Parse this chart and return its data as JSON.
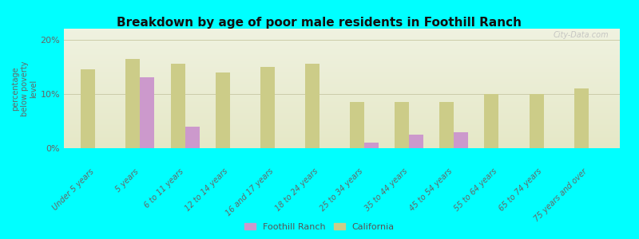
{
  "title": "Breakdown by age of poor male residents in Foothill Ranch",
  "categories": [
    "Under 5 years",
    "5 years",
    "6 to 11 years",
    "12 to 14 years",
    "16 and 17 years",
    "18 to 24 years",
    "25 to 34 years",
    "35 to 44 years",
    "45 to 54 years",
    "55 to 64 years",
    "65 to 74 years",
    "75 years and over"
  ],
  "foothill_ranch": [
    null,
    13.0,
    4.0,
    null,
    null,
    null,
    1.0,
    2.5,
    3.0,
    null,
    null,
    null
  ],
  "california": [
    14.5,
    16.5,
    15.5,
    14.0,
    15.0,
    15.5,
    8.5,
    8.5,
    8.5,
    10.0,
    10.0,
    11.0
  ],
  "ylabel": "percentage\nbelow poverty\nlevel",
  "ylim": [
    0,
    22
  ],
  "yticks": [
    0,
    10,
    20
  ],
  "ytick_labels": [
    "0%",
    "10%",
    "20%"
  ],
  "bar_color_foothill": "#cc99cc",
  "bar_color_california": "#cccc88",
  "background_color": "#00ffff",
  "bar_width": 0.32,
  "legend_foothill": "Foothill Ranch",
  "legend_california": "California",
  "watermark": "City-Data.com"
}
